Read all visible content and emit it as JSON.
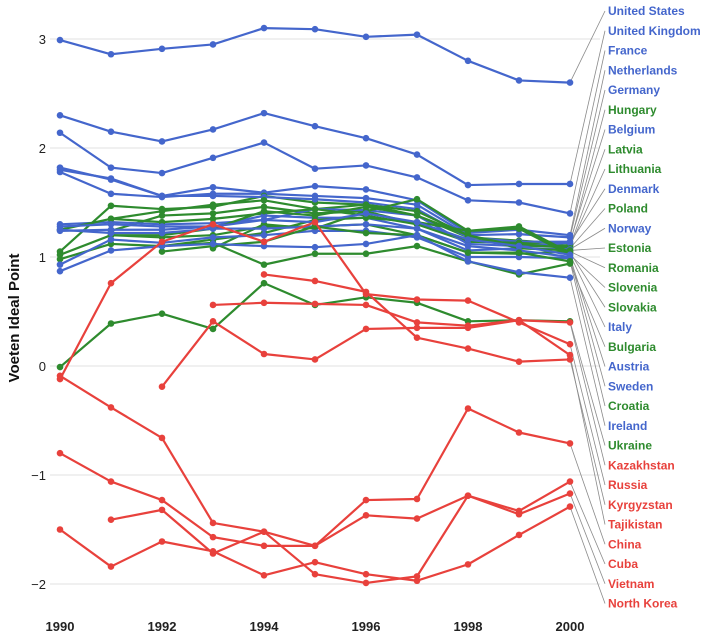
{
  "chart_data": {
    "type": "line",
    "title": "",
    "xlabel": "",
    "ylabel": "Voeten Ideal Point",
    "xlim": [
      1990,
      2000
    ],
    "ylim": [
      -2.15,
      3.3
    ],
    "x_ticks": [
      "1990",
      "1992",
      "1994",
      "1996",
      "1998",
      "2000"
    ],
    "y_ticks": [
      "3",
      "2",
      "1",
      "0",
      "−1",
      "−2"
    ],
    "grid": "horizontal",
    "legend": "right-side labels connected by leader lines",
    "colors": {
      "blue": "#4466cc",
      "green": "#2e8b2e",
      "red": "#e8413c"
    },
    "x": [
      1990,
      1991,
      1992,
      1993,
      1994,
      1995,
      1996,
      1997,
      1998,
      1999,
      2000
    ],
    "series": [
      {
        "name": "United States",
        "color": "blue",
        "values": [
          2.99,
          2.86,
          2.91,
          2.95,
          3.1,
          3.09,
          3.02,
          3.04,
          2.8,
          2.62,
          2.6
        ]
      },
      {
        "name": "United Kingdom",
        "color": "blue",
        "values": [
          2.3,
          2.15,
          2.06,
          2.17,
          2.32,
          2.2,
          2.09,
          1.94,
          1.66,
          1.67,
          1.67
        ]
      },
      {
        "name": "France",
        "color": "blue",
        "values": [
          2.14,
          1.82,
          1.77,
          1.91,
          2.05,
          1.81,
          1.84,
          1.73,
          1.52,
          1.5,
          1.4
        ]
      },
      {
        "name": "Netherlands",
        "color": "blue",
        "values": [
          1.82,
          1.71,
          1.56,
          1.64,
          1.59,
          1.65,
          1.62,
          1.52,
          1.22,
          1.25,
          1.2
        ]
      },
      {
        "name": "Germany",
        "color": "blue",
        "values": [
          1.78,
          1.58,
          1.55,
          1.58,
          1.58,
          1.56,
          1.54,
          1.48,
          1.2,
          1.21,
          1.18
        ]
      },
      {
        "name": "Hungary",
        "color": "green",
        "values": [
          1.05,
          1.47,
          1.44,
          1.46,
          1.56,
          1.5,
          1.48,
          1.38,
          1.18,
          1.15,
          1.12
        ]
      },
      {
        "name": "Belgium",
        "color": "blue",
        "values": [
          1.8,
          1.72,
          1.56,
          1.56,
          1.55,
          1.53,
          1.5,
          1.44,
          1.18,
          1.14,
          1.14
        ]
      },
      {
        "name": "Latvia",
        "color": "green",
        "values": [
          null,
          1.35,
          1.42,
          1.48,
          1.52,
          1.44,
          1.48,
          1.42,
          1.2,
          1.1,
          1.1
        ]
      },
      {
        "name": "Lithuania",
        "color": "green",
        "values": [
          null,
          1.24,
          1.38,
          1.4,
          1.46,
          1.4,
          1.42,
          1.3,
          1.14,
          1.13,
          1.1
        ]
      },
      {
        "name": "Denmark",
        "color": "blue",
        "values": [
          1.3,
          1.32,
          1.3,
          1.31,
          1.34,
          1.44,
          1.43,
          1.38,
          1.12,
          1.1,
          1.13
        ]
      },
      {
        "name": "Poland",
        "color": "green",
        "values": [
          1.25,
          1.35,
          1.32,
          1.35,
          1.4,
          1.44,
          1.38,
          1.3,
          1.16,
          1.12,
          1.08
        ]
      },
      {
        "name": "Norway",
        "color": "blue",
        "values": [
          1.28,
          1.3,
          1.28,
          1.28,
          1.38,
          1.36,
          1.36,
          1.26,
          1.06,
          1.08,
          1.07
        ]
      },
      {
        "name": "Estonia",
        "color": "green",
        "values": [
          null,
          1.2,
          1.2,
          1.26,
          1.42,
          1.38,
          1.46,
          1.38,
          1.2,
          1.08,
          1.06
        ]
      },
      {
        "name": "Romania",
        "color": "green",
        "values": [
          1.02,
          1.2,
          1.18,
          1.2,
          1.28,
          1.28,
          1.3,
          1.2,
          1.04,
          1.03,
          1.05
        ]
      },
      {
        "name": "Slovenia",
        "color": "green",
        "values": [
          null,
          null,
          1.1,
          1.16,
          1.22,
          1.34,
          1.36,
          1.32,
          1.24,
          1.26,
          1.02
        ]
      },
      {
        "name": "Slovakia",
        "color": "green",
        "values": [
          null,
          null,
          null,
          1.08,
          1.3,
          1.26,
          1.42,
          1.53,
          1.24,
          1.28,
          1.04
        ]
      },
      {
        "name": "Italy",
        "color": "blue",
        "values": [
          1.24,
          1.25,
          1.25,
          1.28,
          1.34,
          1.32,
          1.4,
          1.32,
          1.16,
          1.1,
          1.02
        ]
      },
      {
        "name": "Bulgaria",
        "color": "green",
        "values": [
          0.98,
          1.12,
          1.1,
          1.13,
          0.93,
          1.03,
          1.03,
          1.1,
          0.96,
          0.84,
          0.94
        ]
      },
      {
        "name": "Austria",
        "color": "blue",
        "values": [
          1.25,
          1.22,
          1.22,
          1.26,
          1.26,
          1.28,
          1.3,
          1.26,
          1.1,
          1.06,
          1.0
        ]
      },
      {
        "name": "Sweden",
        "color": "blue",
        "values": [
          0.93,
          1.16,
          1.13,
          1.18,
          1.2,
          1.24,
          1.24,
          1.18,
          1.0,
          1.0,
          0.99
        ]
      },
      {
        "name": "Croatia",
        "color": "green",
        "values": [
          null,
          null,
          1.05,
          1.1,
          1.14,
          1.28,
          1.22,
          1.2,
          1.04,
          1.04,
          0.96
        ]
      },
      {
        "name": "Ireland",
        "color": "blue",
        "values": [
          0.87,
          1.06,
          1.1,
          1.12,
          1.1,
          1.09,
          1.12,
          1.2,
          0.96,
          0.86,
          0.81
        ]
      },
      {
        "name": "Ukraine",
        "color": "green",
        "values": [
          -0.01,
          0.39,
          0.48,
          0.34,
          0.76,
          0.56,
          0.63,
          0.58,
          0.41,
          0.42,
          0.41
        ]
      },
      {
        "name": "Kazakhstan",
        "color": "red",
        "values": [
          null,
          null,
          null,
          0.56,
          0.58,
          0.57,
          0.56,
          0.4,
          0.37,
          0.42,
          0.4
        ]
      },
      {
        "name": "Russia",
        "color": "red",
        "values": [
          -0.12,
          0.76,
          1.14,
          1.3,
          1.14,
          1.32,
          0.66,
          0.61,
          0.6,
          0.4,
          0.2
        ]
      },
      {
        "name": "Kyrgyzstan",
        "color": "red",
        "values": [
          null,
          null,
          null,
          null,
          0.84,
          0.78,
          0.68,
          0.26,
          0.16,
          0.04,
          0.06
        ]
      },
      {
        "name": "Tajikistan",
        "color": "red",
        "values": [
          null,
          null,
          -0.19,
          0.41,
          0.11,
          0.06,
          0.34,
          0.35,
          0.35,
          0.42,
          0.1
        ]
      },
      {
        "name": "China",
        "color": "red",
        "values": [
          -0.09,
          -0.38,
          -0.66,
          -1.44,
          -1.52,
          -1.65,
          -1.23,
          -1.22,
          -0.39,
          -0.61,
          -0.71
        ]
      },
      {
        "name": "Cuba",
        "color": "red",
        "values": [
          -0.8,
          -1.06,
          -1.23,
          -1.57,
          -1.65,
          -1.65,
          -1.37,
          -1.4,
          -1.19,
          -1.33,
          -1.06
        ]
      },
      {
        "name": "Vietnam",
        "color": "red",
        "values": [
          null,
          -1.41,
          -1.32,
          -1.72,
          -1.52,
          -1.91,
          -1.99,
          -1.93,
          -1.19,
          -1.36,
          -1.17
        ]
      },
      {
        "name": "North Korea",
        "color": "red",
        "values": [
          -1.5,
          -1.84,
          -1.61,
          -1.7,
          -1.92,
          -1.8,
          -1.91,
          -1.97,
          -1.82,
          -1.55,
          -1.29
        ]
      }
    ]
  }
}
